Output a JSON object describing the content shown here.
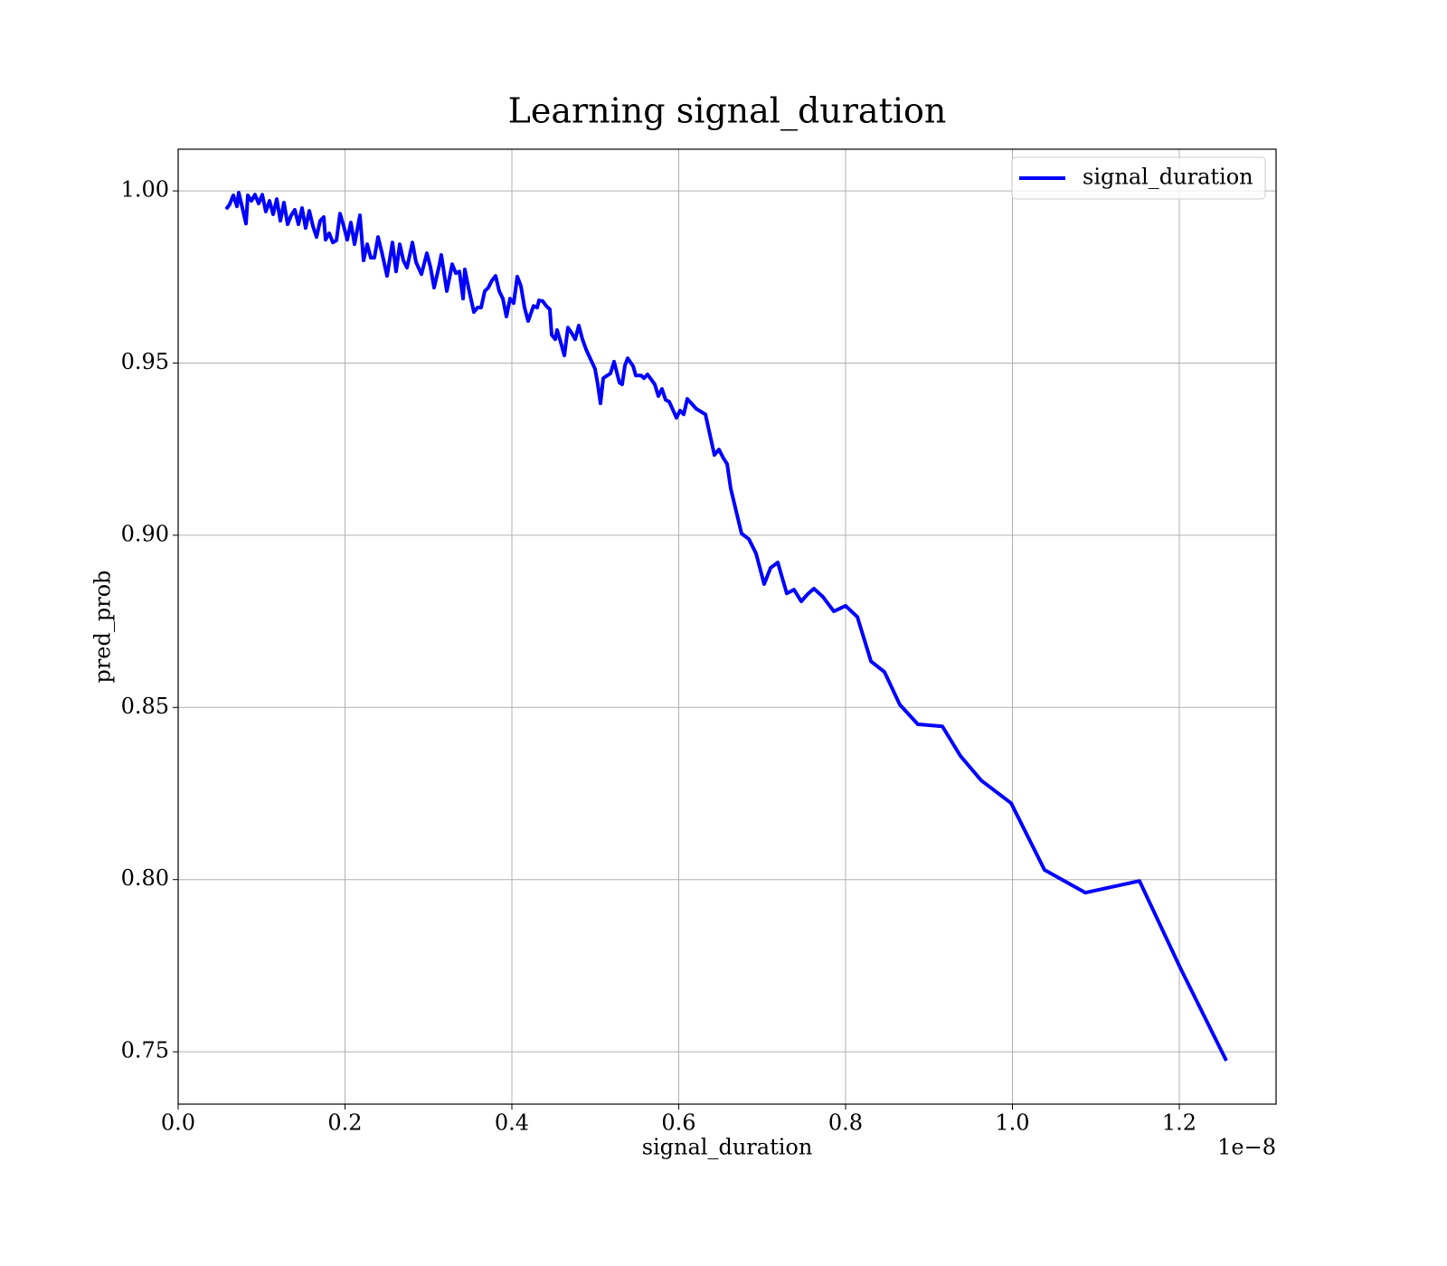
{
  "chart_data": {
    "type": "line",
    "title": "Learning signal_duration",
    "x_label": "signal_duration",
    "y_label": "pred_prob",
    "x_offset_label": "1e−8",
    "xlim": [
      0,
      1.316
    ],
    "ylim": [
      0.7348,
      1.0121
    ],
    "xticks": [
      {
        "value": 0,
        "label": "0.0"
      },
      0.2,
      0.4,
      0.6,
      0.8,
      {
        "value": 1,
        "label": "1.0"
      },
      1.2
    ],
    "yticks": [
      0.75,
      {
        "value": 0.8,
        "label": "0.80"
      },
      0.85,
      {
        "value": 0.9,
        "label": "0.90"
      },
      0.95,
      {
        "value": 1,
        "label": "1.00"
      }
    ],
    "grid": true,
    "legend": "upper right",
    "series": [
      {
        "name": "signal_duration",
        "color": "#0000ff",
        "x": [
          0.0575,
          0.0618,
          0.0661,
          0.0705,
          0.0726,
          0.077,
          0.0813,
          0.0835,
          0.0878,
          0.0921,
          0.0965,
          0.1008,
          0.1051,
          0.1095,
          0.1138,
          0.1182,
          0.1225,
          0.1268,
          0.1312,
          0.1355,
          0.1398,
          0.1442,
          0.1485,
          0.1528,
          0.1572,
          0.1615,
          0.1659,
          0.1702,
          0.1745,
          0.1767,
          0.181,
          0.1854,
          0.1897,
          0.194,
          0.1984,
          0.2027,
          0.207,
          0.2114,
          0.2179,
          0.2222,
          0.2266,
          0.2309,
          0.2352,
          0.2396,
          0.2439,
          0.2504,
          0.2569,
          0.2612,
          0.2656,
          0.2699,
          0.2743,
          0.2808,
          0.2851,
          0.2916,
          0.2981,
          0.3024,
          0.3068,
          0.3133,
          0.3154,
          0.322,
          0.3285,
          0.3328,
          0.3371,
          0.3415,
          0.3436,
          0.348,
          0.3545,
          0.3588,
          0.3631,
          0.3675,
          0.3718,
          0.3762,
          0.3805,
          0.3848,
          0.3892,
          0.3935,
          0.3978,
          0.4022,
          0.4065,
          0.4108,
          0.4152,
          0.4195,
          0.426,
          0.4304,
          0.4325,
          0.4369,
          0.4412,
          0.4455,
          0.4477,
          0.452,
          0.4542,
          0.4585,
          0.4629,
          0.4672,
          0.4715,
          0.4759,
          0.4802,
          0.4846,
          0.4889,
          0.4932,
          0.4997,
          0.503,
          0.5062,
          0.5095,
          0.5182,
          0.5225,
          0.529,
          0.5322,
          0.5355,
          0.5388,
          0.5453,
          0.5485,
          0.555,
          0.5583,
          0.5626,
          0.5713,
          0.5756,
          0.5799,
          0.5843,
          0.5886,
          0.5973,
          0.6016,
          0.606,
          0.6103,
          0.6211,
          0.632,
          0.6428,
          0.6482,
          0.6537,
          0.658,
          0.6623,
          0.6753,
          0.684,
          0.6927,
          0.7024,
          0.71,
          0.7187,
          0.7295,
          0.7382,
          0.7469,
          0.7545,
          0.7621,
          0.7729,
          0.7859,
          0.8,
          0.8141,
          0.8304,
          0.8466,
          0.865,
          0.8867,
          0.916,
          0.9377,
          0.9626,
          0.9984,
          1.0385,
          1.0873,
          1.1523,
          1.2011,
          1.2564
        ],
        "values": [
          0.9947,
          0.9961,
          0.9987,
          0.9955,
          0.9995,
          0.995,
          0.9905,
          0.9987,
          0.9971,
          0.9989,
          0.9963,
          0.9989,
          0.994,
          0.9971,
          0.9932,
          0.9976,
          0.9913,
          0.9966,
          0.9903,
          0.9929,
          0.9945,
          0.9903,
          0.995,
          0.9892,
          0.9942,
          0.9898,
          0.9866,
          0.9913,
          0.9924,
          0.9858,
          0.9877,
          0.985,
          0.9856,
          0.9934,
          0.9898,
          0.9858,
          0.9908,
          0.9845,
          0.9929,
          0.9798,
          0.9845,
          0.9806,
          0.9806,
          0.9866,
          0.9824,
          0.9753,
          0.985,
          0.9766,
          0.9845,
          0.9798,
          0.9777,
          0.985,
          0.9793,
          0.9758,
          0.9819,
          0.9779,
          0.9719,
          0.9787,
          0.9814,
          0.9709,
          0.9787,
          0.9761,
          0.9766,
          0.9687,
          0.9772,
          0.9719,
          0.9648,
          0.9661,
          0.9661,
          0.9709,
          0.9719,
          0.974,
          0.9753,
          0.9709,
          0.9687,
          0.9635,
          0.9687,
          0.9674,
          0.9751,
          0.9724,
          0.9661,
          0.9622,
          0.9666,
          0.9661,
          0.9682,
          0.968,
          0.9666,
          0.9656,
          0.9582,
          0.9569,
          0.9596,
          0.9561,
          0.9522,
          0.9603,
          0.9588,
          0.9569,
          0.9609,
          0.9569,
          0.954,
          0.9517,
          0.9483,
          0.9438,
          0.9383,
          0.9456,
          0.947,
          0.9504,
          0.9443,
          0.9438,
          0.9493,
          0.9514,
          0.9491,
          0.9464,
          0.9464,
          0.9456,
          0.9467,
          0.9438,
          0.9404,
          0.9425,
          0.9393,
          0.9388,
          0.9341,
          0.9362,
          0.9351,
          0.9396,
          0.9367,
          0.9351,
          0.9233,
          0.9249,
          0.9223,
          0.9207,
          0.9136,
          0.9005,
          0.8989,
          0.8947,
          0.8858,
          0.8905,
          0.8921,
          0.8831,
          0.8842,
          0.8808,
          0.8829,
          0.8845,
          0.8821,
          0.8779,
          0.8795,
          0.8763,
          0.8634,
          0.8603,
          0.8508,
          0.8451,
          0.8445,
          0.8359,
          0.8288,
          0.8222,
          0.8028,
          0.7962,
          0.7996,
          0.7744,
          0.7474
        ]
      }
    ]
  }
}
